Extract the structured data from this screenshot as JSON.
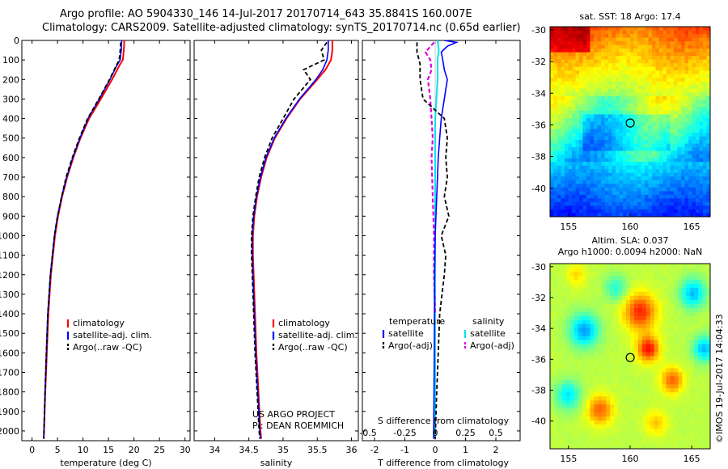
{
  "header": {
    "line1": "Argo profile: AO 5904330_146 14-Jul-2017 20170714_643 35.8841S 160.007E",
    "line2": "Climatology: CARS2009. Satellite-adjusted climatology: synTS_20170714.nc (0.65d earlier)"
  },
  "colors": {
    "climatology": "#ff0000",
    "satellite": "#0000ff",
    "argo": "#000000",
    "satellite_salinity": "#00e5ee",
    "argo_salinity": "#e000e0"
  },
  "chart_data": [
    {
      "type": "line",
      "panel": "temperature",
      "xlabel": "temperature (deg C)",
      "ylabel": "",
      "xlim": [
        -2,
        31
      ],
      "ylim": [
        2050,
        0
      ],
      "xticks": [
        0,
        5,
        10,
        15,
        20,
        25,
        30
      ],
      "yticks": [
        0,
        100,
        200,
        300,
        400,
        500,
        600,
        700,
        800,
        900,
        1000,
        1100,
        1200,
        1300,
        1400,
        1500,
        1600,
        1700,
        1800,
        1900,
        2000
      ],
      "legend": [
        "climatology",
        "satellite-adj. clim.",
        "Argo(..raw -QC)"
      ],
      "series": [
        {
          "name": "climatology",
          "depth": [
            0,
            50,
            100,
            130,
            200,
            300,
            400,
            500,
            600,
            700,
            800,
            900,
            1000,
            1200,
            1400,
            1600,
            1800,
            2000,
            2040
          ],
          "values": [
            18.1,
            18.0,
            17.8,
            17.1,
            15.7,
            13.5,
            11.2,
            9.5,
            8.1,
            6.9,
            5.9,
            5.1,
            4.5,
            3.7,
            3.2,
            2.9,
            2.6,
            2.35,
            2.3
          ]
        },
        {
          "name": "satellite-adj. clim.",
          "depth": [
            0,
            50,
            100,
            130,
            200,
            300,
            400,
            500,
            600,
            700,
            800,
            900,
            1000,
            1200,
            1400,
            1600,
            1800,
            2000,
            2040
          ],
          "values": [
            17.6,
            17.5,
            17.3,
            16.6,
            15.3,
            13.2,
            11.0,
            9.4,
            8.0,
            6.8,
            5.8,
            5.0,
            4.4,
            3.6,
            3.1,
            2.8,
            2.55,
            2.35,
            2.3
          ]
        },
        {
          "name": "Argo(..raw -QC)",
          "depth": [
            10,
            50,
            100,
            130,
            200,
            300,
            400,
            500,
            600,
            700,
            800,
            900,
            1000,
            1200,
            1400,
            1600,
            1800,
            2000,
            2040
          ],
          "values": [
            17.4,
            17.3,
            17.1,
            16.5,
            15.2,
            13.1,
            10.9,
            9.3,
            7.9,
            6.7,
            5.8,
            5.0,
            4.4,
            3.6,
            3.1,
            2.8,
            2.55,
            2.35,
            2.3
          ]
        }
      ]
    },
    {
      "type": "line",
      "panel": "salinity",
      "xlabel": "salinity",
      "ylabel": "",
      "xlim": [
        33.7,
        36.1
      ],
      "ylim": [
        2050,
        0
      ],
      "xticks": [
        34,
        34.5,
        35,
        35.5,
        36
      ],
      "legend": [
        "climatology",
        "satellite-adj. clim.",
        "Argo(..raw -QC)"
      ],
      "series": [
        {
          "name": "climatology",
          "depth": [
            0,
            50,
            100,
            150,
            200,
            300,
            400,
            500,
            600,
            700,
            800,
            900,
            1000,
            1100,
            1200,
            1400,
            1600,
            1800,
            2000,
            2040
          ],
          "values": [
            35.72,
            35.72,
            35.7,
            35.62,
            35.5,
            35.25,
            35.05,
            34.88,
            34.76,
            34.68,
            34.62,
            34.58,
            34.56,
            34.56,
            34.57,
            34.59,
            34.61,
            34.64,
            34.67,
            34.68
          ]
        },
        {
          "name": "satellite-adj. clim.",
          "depth": [
            0,
            50,
            100,
            150,
            200,
            300,
            400,
            500,
            600,
            700,
            800,
            900,
            1000,
            1100,
            1200,
            1400,
            1600,
            1800,
            2000,
            2040
          ],
          "values": [
            35.66,
            35.66,
            35.64,
            35.58,
            35.48,
            35.24,
            35.04,
            34.87,
            34.75,
            34.67,
            34.61,
            34.57,
            34.55,
            34.55,
            34.56,
            34.58,
            34.6,
            34.63,
            34.66,
            34.67
          ]
        },
        {
          "name": "Argo(..raw -QC)",
          "depth": [
            10,
            50,
            100,
            150,
            200,
            300,
            400,
            500,
            600,
            700,
            800,
            900,
            1000,
            1100,
            1200,
            1400,
            1600,
            1800,
            2000,
            2040
          ],
          "values": [
            35.64,
            35.56,
            35.6,
            35.3,
            35.4,
            35.16,
            35.0,
            34.84,
            34.73,
            34.65,
            34.6,
            34.56,
            34.54,
            34.54,
            34.55,
            34.57,
            34.59,
            34.62,
            34.65,
            34.66
          ]
        }
      ],
      "annotation": [
        "US ARGO PROJECT",
        "PI: DEAN ROEMMICH"
      ]
    },
    {
      "type": "line",
      "panel": "difference",
      "xlabel": "T difference from climatology",
      "x2label": "S difference from climatology",
      "xlim": [
        -2.4,
        2.8
      ],
      "x2lim": [
        -0.6,
        0.7
      ],
      "ylim": [
        2050,
        0
      ],
      "xticks": [
        -2,
        -1,
        0,
        1,
        2
      ],
      "x2ticks": [
        "-0.5",
        "-0.25",
        "0",
        "0.25",
        "0.5"
      ],
      "legend_headers": [
        "temperature",
        "salinity"
      ],
      "legend_left": [
        "satellite",
        "Argo(-adj)"
      ],
      "legend_right": [
        "satellite",
        "Argo(-adj)"
      ],
      "series": [
        {
          "name": "temperature satellite",
          "depth": [
            0,
            10,
            30,
            60,
            100,
            150,
            200,
            300,
            400,
            500,
            600,
            800,
            1000,
            1200,
            1600,
            2040
          ],
          "values": [
            0.3,
            0.7,
            0.4,
            0.2,
            0.25,
            0.3,
            0.4,
            0.3,
            0.2,
            0.15,
            0.1,
            0.05,
            0.0,
            -0.02,
            -0.03,
            -0.05
          ]
        },
        {
          "name": "temperature Argo(-adj)",
          "depth": [
            10,
            60,
            120,
            200,
            300,
            400,
            500,
            600,
            700,
            800,
            900,
            1000,
            1100,
            1200,
            1400,
            1600,
            1800,
            2040
          ],
          "values": [
            -0.6,
            -0.6,
            -0.5,
            -0.5,
            -0.4,
            0.3,
            0.4,
            0.35,
            0.4,
            0.3,
            0.45,
            0.2,
            0.35,
            0.3,
            0.15,
            0.1,
            0.05,
            0.0
          ]
        },
        {
          "name": "salinity satellite",
          "depth": [
            0,
            50,
            100,
            200,
            300,
            400,
            600,
            800,
            1000,
            1400,
            2040
          ],
          "values": [
            0.02,
            0.03,
            0.02,
            0.02,
            0.01,
            0.0,
            0.0,
            0.0,
            0.0,
            0.0,
            0.0
          ]
        },
        {
          "name": "salinity Argo(-adj)",
          "depth": [
            10,
            60,
            100,
            150,
            200,
            300,
            400,
            500,
            600,
            800,
            1000,
            1200,
            1400
          ],
          "values": [
            -0.01,
            -0.08,
            -0.04,
            -0.03,
            -0.06,
            -0.04,
            -0.03,
            -0.02,
            -0.03,
            -0.02,
            -0.01,
            -0.01,
            0.0
          ]
        }
      ],
      "annotation_top": "S difference from climatology"
    },
    {
      "type": "heatmap",
      "panel": "SST map",
      "title": "sat. SST: 18 Argo: 17.4",
      "xlim": [
        153.5,
        166.5
      ],
      "ylim": [
        -41.8,
        -29.8
      ],
      "xticks": [
        155,
        160,
        165
      ],
      "yticks": [
        -30,
        -32,
        -34,
        -36,
        -38,
        -40
      ],
      "marker": {
        "lon": 160.007,
        "lat": -35.8841
      }
    },
    {
      "type": "heatmap",
      "panel": "SLA map",
      "title": "Altim. SLA: 0.037",
      "subtitle": "Argo h1000: 0.0094 h2000: NaN",
      "xlim": [
        153.5,
        166.5
      ],
      "ylim": [
        -41.8,
        -29.8
      ],
      "xticks": [
        155,
        160,
        165
      ],
      "yticks": [
        -30,
        -32,
        -34,
        -36,
        -38,
        -40
      ],
      "marker": {
        "lon": 160.007,
        "lat": -35.8841
      }
    }
  ],
  "credit": "©IMOS 19-Jul-2017 14:04:33"
}
